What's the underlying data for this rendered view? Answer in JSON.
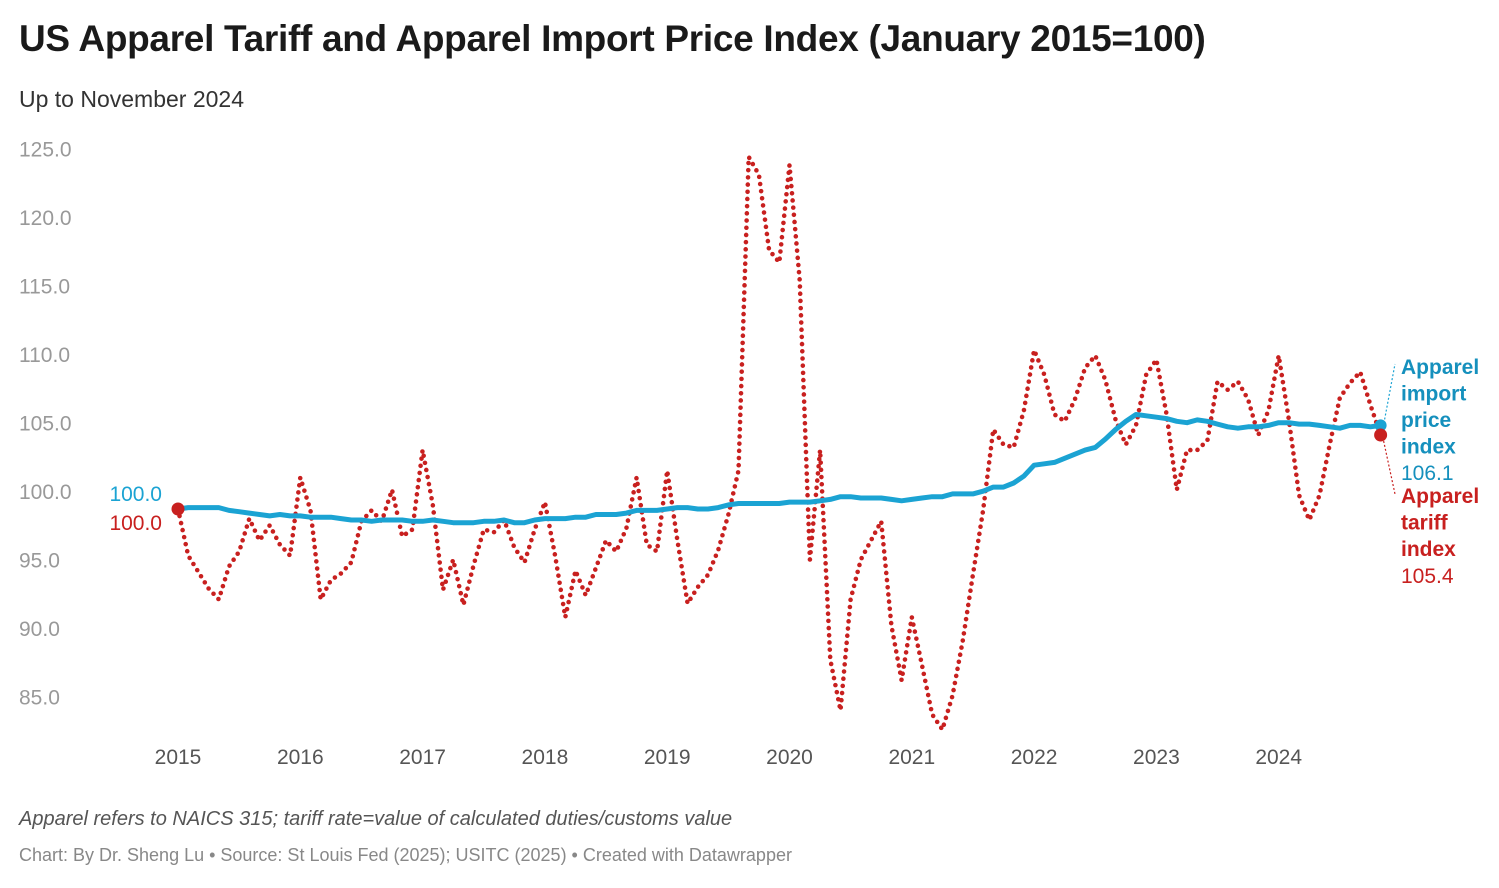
{
  "header": {
    "title": "US Apparel Tariff and Apparel Import Price Index (January 2015=100)",
    "subtitle": "Up to November 2024"
  },
  "footer": {
    "note": "Apparel refers to NAICS 315; tariff rate=value of calculated duties/customs value",
    "byline": "Chart: By Dr. Sheng Lu • Source: St Louis Fed (2025); USITC (2025) • Created with Datawrapper"
  },
  "chart_data": {
    "type": "line",
    "title": "US Apparel Tariff and Apparel Import Price Index (January 2015=100)",
    "subtitle": "Up to November 2024",
    "xlabel": "",
    "ylabel": "",
    "ylim": [
      83,
      125.5
    ],
    "yticks": [
      "85.0",
      "90.0",
      "95.0",
      "100.0",
      "105.0",
      "110.0",
      "115.0",
      "120.0",
      "125.0"
    ],
    "xticks": [
      "2015",
      "2016",
      "2017",
      "2018",
      "2019",
      "2020",
      "2021",
      "2022",
      "2023",
      "2024"
    ],
    "grid": false,
    "legend": "direct labels at right end",
    "x": [
      "2015-01",
      "2015-02",
      "2015-03",
      "2015-04",
      "2015-05",
      "2015-06",
      "2015-07",
      "2015-08",
      "2015-09",
      "2015-10",
      "2015-11",
      "2015-12",
      "2016-01",
      "2016-02",
      "2016-03",
      "2016-04",
      "2016-05",
      "2016-06",
      "2016-07",
      "2016-08",
      "2016-09",
      "2016-10",
      "2016-11",
      "2016-12",
      "2017-01",
      "2017-02",
      "2017-03",
      "2017-04",
      "2017-05",
      "2017-06",
      "2017-07",
      "2017-08",
      "2017-09",
      "2017-10",
      "2017-11",
      "2017-12",
      "2018-01",
      "2018-02",
      "2018-03",
      "2018-04",
      "2018-05",
      "2018-06",
      "2018-07",
      "2018-08",
      "2018-09",
      "2018-10",
      "2018-11",
      "2018-12",
      "2019-01",
      "2019-02",
      "2019-03",
      "2019-04",
      "2019-05",
      "2019-06",
      "2019-07",
      "2019-08",
      "2019-09",
      "2019-10",
      "2019-11",
      "2019-12",
      "2020-01",
      "2020-02",
      "2020-03",
      "2020-04",
      "2020-05",
      "2020-06",
      "2020-07",
      "2020-08",
      "2020-09",
      "2020-10",
      "2020-11",
      "2020-12",
      "2021-01",
      "2021-02",
      "2021-03",
      "2021-04",
      "2021-05",
      "2021-06",
      "2021-07",
      "2021-08",
      "2021-09",
      "2021-10",
      "2021-11",
      "2021-12",
      "2022-01",
      "2022-02",
      "2022-03",
      "2022-04",
      "2022-05",
      "2022-06",
      "2022-07",
      "2022-08",
      "2022-09",
      "2022-10",
      "2022-11",
      "2022-12",
      "2023-01",
      "2023-02",
      "2023-03",
      "2023-04",
      "2023-05",
      "2023-06",
      "2023-07",
      "2023-08",
      "2023-09",
      "2023-10",
      "2023-11",
      "2023-12",
      "2024-01",
      "2024-02",
      "2024-03",
      "2024-04",
      "2024-05",
      "2024-06",
      "2024-07",
      "2024-08",
      "2024-09",
      "2024-10",
      "2024-11"
    ],
    "series": [
      {
        "name": "Apparel import price index",
        "label_lines": [
          "Apparel",
          "import",
          "price",
          "index"
        ],
        "start_label": "100.0",
        "end_label": "106.1",
        "color": "#1ba3d3",
        "style": "solid",
        "values": [
          100.0,
          100.1,
          100.1,
          100.1,
          100.1,
          99.9,
          99.8,
          99.7,
          99.6,
          99.5,
          99.6,
          99.5,
          99.5,
          99.4,
          99.4,
          99.4,
          99.3,
          99.2,
          99.2,
          99.1,
          99.2,
          99.2,
          99.2,
          99.1,
          99.1,
          99.2,
          99.1,
          99.0,
          99.0,
          99.0,
          99.1,
          99.1,
          99.2,
          99.0,
          99.0,
          99.2,
          99.3,
          99.3,
          99.3,
          99.4,
          99.4,
          99.6,
          99.6,
          99.6,
          99.7,
          99.9,
          99.9,
          99.9,
          100.0,
          100.1,
          100.1,
          100.0,
          100.0,
          100.1,
          100.3,
          100.4,
          100.4,
          100.4,
          100.4,
          100.4,
          100.5,
          100.5,
          100.5,
          100.6,
          100.7,
          100.9,
          100.9,
          100.8,
          100.8,
          100.8,
          100.7,
          100.6,
          100.7,
          100.8,
          100.9,
          100.9,
          101.1,
          101.1,
          101.1,
          101.3,
          101.6,
          101.6,
          101.9,
          102.4,
          103.2,
          103.3,
          103.4,
          103.7,
          104.0,
          104.3,
          104.5,
          105.1,
          105.8,
          106.4,
          106.9,
          106.8,
          106.7,
          106.6,
          106.4,
          106.3,
          106.5,
          106.4,
          106.2,
          106.0,
          105.9,
          106.0,
          106.0,
          106.1,
          106.3,
          106.3,
          106.2,
          106.2,
          106.1,
          106.0,
          105.9,
          106.1,
          106.1,
          106.0,
          106.1
        ]
      },
      {
        "name": "Apparel tariff index",
        "label_lines": [
          "Apparel",
          "tariff",
          "index"
        ],
        "start_label": "100.0",
        "end_label": "105.4",
        "color": "#c8201f",
        "style": "dotted",
        "values": [
          100.0,
          96.6,
          95.4,
          94.2,
          93.4,
          95.8,
          96.9,
          99.3,
          97.7,
          98.8,
          97.4,
          96.6,
          102.3,
          99.9,
          93.4,
          94.8,
          95.3,
          96.1,
          99.1,
          99.9,
          99.1,
          101.4,
          98.0,
          98.5,
          104.3,
          100.3,
          94.1,
          96.3,
          93.0,
          95.9,
          98.5,
          98.3,
          99.2,
          97.2,
          96.1,
          98.5,
          100.5,
          96.6,
          92.1,
          95.5,
          93.7,
          95.7,
          97.7,
          96.9,
          98.6,
          102.3,
          97.4,
          96.9,
          102.8,
          97.7,
          93.1,
          94.3,
          95.2,
          97.0,
          99.6,
          102.8,
          125.7,
          124.4,
          118.9,
          118.0,
          125.1,
          116.7,
          96.3,
          104.3,
          89.0,
          85.3,
          93.4,
          96.3,
          97.7,
          99.1,
          91.5,
          87.5,
          92.1,
          88.6,
          85.0,
          83.9,
          86.4,
          90.4,
          95.2,
          99.9,
          105.8,
          104.7,
          104.5,
          107.2,
          111.6,
          109.8,
          106.9,
          106.4,
          108.0,
          110.3,
          111.2,
          109.4,
          106.5,
          104.7,
          106.1,
          109.8,
          110.9,
          106.9,
          101.4,
          104.3,
          104.3,
          105.0,
          109.3,
          108.7,
          109.3,
          108.0,
          105.4,
          107.2,
          111.2,
          106.5,
          101.0,
          99.2,
          101.0,
          104.7,
          108.1,
          109.2,
          110.0,
          107.6,
          105.4
        ]
      }
    ]
  }
}
